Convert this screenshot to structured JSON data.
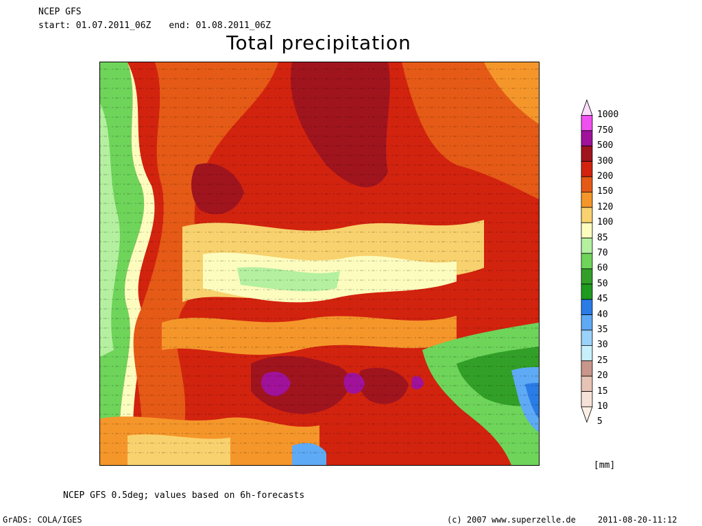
{
  "header": {
    "model": "NCEP GFS",
    "start_label": "start:",
    "start": "01.07.2011_06Z",
    "end_label": "end:",
    "end": "01.08.2011_06Z"
  },
  "title": "Total precipitation",
  "footer": {
    "note": "NCEP GFS 0.5deg; values based on 6h-forecasts",
    "software": "GrADS: COLA/IGES",
    "copyright": "(c) 2007 www.superzelle.de",
    "timestamp": "2011-08-20-11:12"
  },
  "legend": {
    "unit": "[mm]",
    "levels": [
      {
        "label": "1000",
        "color": "#fcdcfc"
      },
      {
        "label": "750",
        "color": "#f050f0"
      },
      {
        "label": "500",
        "color": "#a0129a"
      },
      {
        "label": "300",
        "color": "#a0141e"
      },
      {
        "label": "200",
        "color": "#d2230f"
      },
      {
        "label": "150",
        "color": "#e55a16"
      },
      {
        "label": "120",
        "color": "#f5962a"
      },
      {
        "label": "100",
        "color": "#f8d26e"
      },
      {
        "label": "85",
        "color": "#fcfcbe"
      },
      {
        "label": "70",
        "color": "#b4f0a0"
      },
      {
        "label": "60",
        "color": "#6ed45a"
      },
      {
        "label": "50",
        "color": "#32a028"
      },
      {
        "label": "45",
        "color": "#1e9b1e"
      },
      {
        "label": "40",
        "color": "#2a7ce6"
      },
      {
        "label": "35",
        "color": "#5eaaf5"
      },
      {
        "label": "30",
        "color": "#9ad2fa"
      },
      {
        "label": "25",
        "color": "#c8f0fc"
      },
      {
        "label": "20",
        "color": "#c8968a"
      },
      {
        "label": "15",
        "color": "#e6c3b4"
      },
      {
        "label": "10",
        "color": "#f5e1d7"
      },
      {
        "label": "5",
        "color": "#fcf0e6"
      }
    ]
  }
}
